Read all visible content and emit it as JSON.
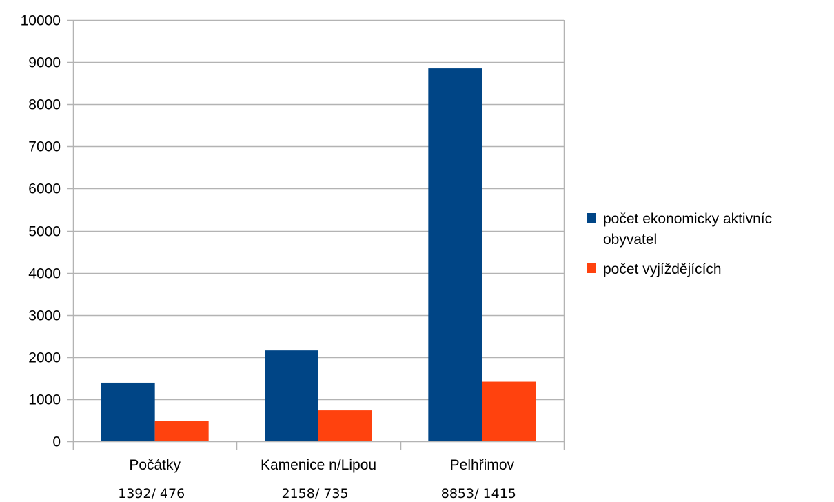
{
  "chart_data": {
    "type": "bar",
    "title": "",
    "xlabel": "",
    "ylabel": "",
    "ylim": [
      0,
      10000
    ],
    "yticks": [
      0,
      1000,
      2000,
      3000,
      4000,
      5000,
      6000,
      7000,
      8000,
      9000,
      10000
    ],
    "grid": true,
    "legend_position": "right",
    "categories": [
      "Počátky",
      "Kamenice n/Lipou",
      "Pelhřimov"
    ],
    "category_sublabels": [
      "1392/ 476",
      "2158/ 735",
      "8853/ 1415"
    ],
    "series": [
      {
        "name": "počet ekonomicky aktivních obyvatel",
        "legend_lines": [
          "počet ekonomicky aktivníc",
          "obyvatel"
        ],
        "color": "#004586",
        "values": [
          1392,
          2158,
          8853
        ]
      },
      {
        "name": "počet vyjíždějících",
        "legend_lines": [
          "počet vyjíždějících"
        ],
        "color": "#ff420e",
        "values": [
          476,
          735,
          1415
        ]
      }
    ],
    "grid_color": "#b3b3b3"
  }
}
